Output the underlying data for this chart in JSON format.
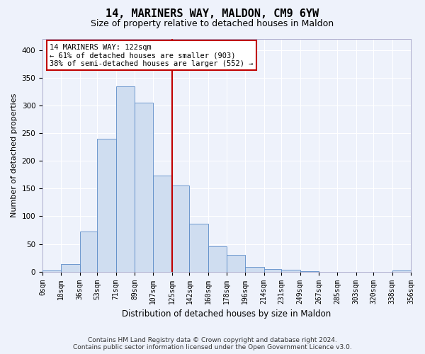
{
  "title": "14, MARINERS WAY, MALDON, CM9 6YW",
  "subtitle": "Size of property relative to detached houses in Maldon",
  "xlabel": "Distribution of detached houses by size in Maldon",
  "ylabel": "Number of detached properties",
  "bar_labels": [
    "0sqm",
    "18sqm",
    "36sqm",
    "53sqm",
    "71sqm",
    "89sqm",
    "107sqm",
    "125sqm",
    "142sqm",
    "160sqm",
    "178sqm",
    "196sqm",
    "214sqm",
    "231sqm",
    "249sqm",
    "267sqm",
    "285sqm",
    "303sqm",
    "320sqm",
    "338sqm",
    "356sqm"
  ],
  "bar_heights": [
    2,
    14,
    72,
    240,
    335,
    305,
    174,
    155,
    87,
    46,
    30,
    8,
    5,
    3,
    1,
    0,
    0,
    0,
    0,
    2
  ],
  "bar_color": "#cfddf0",
  "bar_edge_color": "#5b8cc8",
  "property_label": "14 MARINERS WAY: 122sqm",
  "annotation_line1": "← 61% of detached houses are smaller (903)",
  "annotation_line2": "38% of semi-detached houses are larger (552) →",
  "vline_color": "#c00000",
  "vline_x": 125,
  "xlim_min": 0,
  "xlim_max": 356,
  "ylim_min": 0,
  "ylim_max": 420,
  "yticks": [
    0,
    50,
    100,
    150,
    200,
    250,
    300,
    350,
    400
  ],
  "footer_line1": "Contains HM Land Registry data © Crown copyright and database right 2024.",
  "footer_line2": "Contains public sector information licensed under the Open Government Licence v3.0.",
  "background_color": "#eef2fb",
  "plot_bg_color": "#eef2fb",
  "annotation_box_facecolor": "#ffffff",
  "annotation_box_edgecolor": "#c00000",
  "grid_color": "#ffffff",
  "title_fontsize": 11,
  "subtitle_fontsize": 9,
  "ylabel_fontsize": 8,
  "xlabel_fontsize": 8.5,
  "tick_fontsize": 7,
  "annotation_fontsize": 7.5,
  "footer_fontsize": 6.5
}
